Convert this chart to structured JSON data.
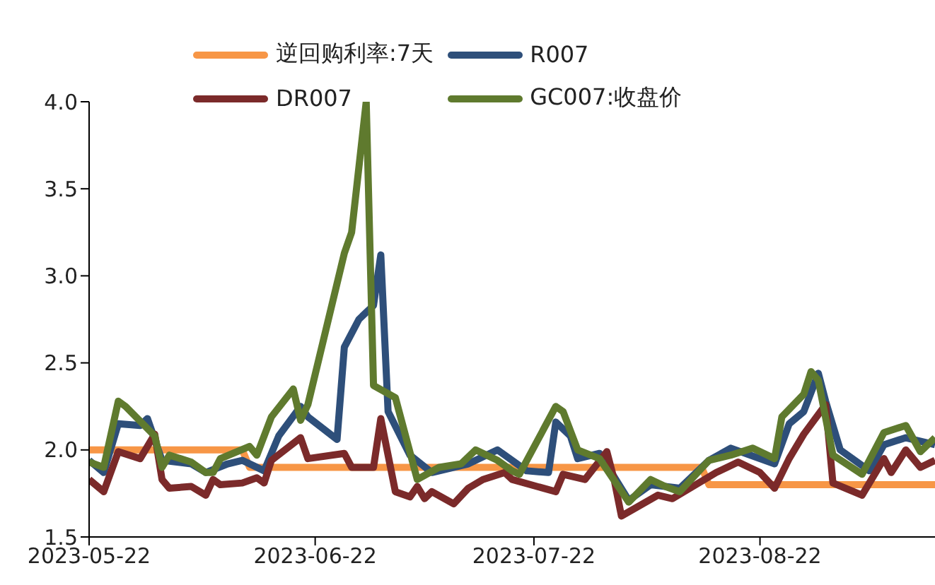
{
  "chart_data": {
    "type": "line",
    "xlim": [
      "2023-05-22",
      "2023-09-15"
    ],
    "xticks": [
      "2023-05-22",
      "2023-06-22",
      "2023-07-22",
      "2023-08-22"
    ],
    "ylim": [
      1.5,
      4.0
    ],
    "yticks": [
      1.5,
      {
        "value": 2,
        "label": "2.0"
      },
      2.5,
      {
        "value": 3,
        "label": "3.0"
      },
      3.5,
      {
        "value": 4,
        "label": "4.0"
      }
    ],
    "grid": false,
    "legend": "top",
    "marker": "none",
    "line_style": "solid",
    "series": [
      {
        "name": "逆回购利率:7天",
        "color": "#f79646",
        "x": [
          "2023-05-22",
          "2023-06-12",
          "2023-06-13",
          "2023-08-14",
          "2023-08-15",
          "2023-09-15"
        ],
        "values": [
          2.0,
          2.0,
          1.9,
          1.9,
          1.8,
          1.8
        ]
      },
      {
        "name": "R007",
        "color": "#2e4f7a",
        "x": [
          "2023-05-22",
          "2023-05-24",
          "2023-05-26",
          "2023-05-29",
          "2023-05-30",
          "2023-06-01",
          "2023-06-05",
          "2023-06-07",
          "2023-06-10",
          "2023-06-12",
          "2023-06-15",
          "2023-06-17",
          "2023-06-20",
          "2023-06-21",
          "2023-06-25",
          "2023-06-26",
          "2023-06-28",
          "2023-06-30",
          "2023-07-01",
          "2023-07-02",
          "2023-07-05",
          "2023-07-08",
          "2023-07-13",
          "2023-07-17",
          "2023-07-21",
          "2023-07-24",
          "2023-07-25",
          "2023-07-27",
          "2023-07-28",
          "2023-07-31",
          "2023-08-04",
          "2023-08-07",
          "2023-08-11",
          "2023-08-15",
          "2023-08-18",
          "2023-08-24",
          "2023-08-26",
          "2023-08-28",
          "2023-08-30",
          "2023-08-31",
          "2023-09-02",
          "2023-09-06",
          "2023-09-08",
          "2023-09-11",
          "2023-09-15"
        ],
        "values": [
          1.94,
          1.87,
          2.15,
          2.14,
          2.18,
          1.94,
          1.92,
          1.87,
          1.92,
          1.94,
          1.88,
          2.08,
          2.25,
          2.19,
          2.06,
          2.59,
          2.75,
          2.83,
          3.12,
          2.22,
          1.97,
          1.87,
          1.92,
          2.0,
          1.88,
          1.87,
          2.16,
          2.08,
          1.95,
          1.98,
          1.71,
          1.8,
          1.78,
          1.94,
          2.01,
          1.92,
          2.15,
          2.22,
          2.44,
          2.28,
          2.0,
          1.88,
          2.03,
          2.07,
          2.03
        ]
      },
      {
        "name": "DR007",
        "color": "#7b2a2a",
        "x": [
          "2023-05-22",
          "2023-05-24",
          "2023-05-26",
          "2023-05-29",
          "2023-05-31",
          "2023-06-01",
          "2023-06-02",
          "2023-06-05",
          "2023-06-07",
          "2023-06-08",
          "2023-06-09",
          "2023-06-12",
          "2023-06-14",
          "2023-06-15",
          "2023-06-16",
          "2023-06-20",
          "2023-06-21",
          "2023-06-26",
          "2023-06-27",
          "2023-06-30",
          "2023-07-01",
          "2023-07-03",
          "2023-07-05",
          "2023-07-06",
          "2023-07-07",
          "2023-07-08",
          "2023-07-11",
          "2023-07-13",
          "2023-07-15",
          "2023-07-18",
          "2023-07-19",
          "2023-07-25",
          "2023-07-26",
          "2023-07-29",
          "2023-08-01",
          "2023-08-02",
          "2023-08-03",
          "2023-08-08",
          "2023-08-10",
          "2023-08-16",
          "2023-08-19",
          "2023-08-22",
          "2023-08-24",
          "2023-08-26",
          "2023-08-28",
          "2023-08-31",
          "2023-09-01",
          "2023-09-05",
          "2023-09-08",
          "2023-09-09",
          "2023-09-11",
          "2023-09-13",
          "2023-09-15"
        ],
        "values": [
          1.83,
          1.76,
          1.99,
          1.95,
          2.09,
          1.83,
          1.78,
          1.79,
          1.74,
          1.83,
          1.8,
          1.81,
          1.84,
          1.81,
          1.94,
          2.07,
          1.95,
          1.98,
          1.9,
          1.9,
          2.18,
          1.76,
          1.73,
          1.79,
          1.72,
          1.76,
          1.69,
          1.78,
          1.83,
          1.87,
          1.83,
          1.76,
          1.86,
          1.83,
          1.99,
          1.83,
          1.62,
          1.74,
          1.72,
          1.87,
          1.93,
          1.87,
          1.78,
          1.95,
          2.09,
          2.26,
          1.81,
          1.74,
          1.95,
          1.87,
          2.0,
          1.9,
          1.94
        ]
      },
      {
        "name": "GC007:收盘价",
        "color": "#5f7a2e",
        "x": [
          "2023-05-22",
          "2023-05-24",
          "2023-05-26",
          "2023-05-27",
          "2023-05-31",
          "2023-06-01",
          "2023-06-02",
          "2023-06-05",
          "2023-06-07",
          "2023-06-08",
          "2023-06-09",
          "2023-06-13",
          "2023-06-14",
          "2023-06-16",
          "2023-06-19",
          "2023-06-20",
          "2023-06-21",
          "2023-06-26",
          "2023-06-27",
          "2023-06-29",
          "2023-06-30",
          "2023-07-03",
          "2023-07-06",
          "2023-07-09",
          "2023-07-12",
          "2023-07-14",
          "2023-07-17",
          "2023-07-19",
          "2023-07-20",
          "2023-07-25",
          "2023-07-26",
          "2023-07-28",
          "2023-07-31",
          "2023-08-04",
          "2023-08-07",
          "2023-08-09",
          "2023-08-11",
          "2023-08-15",
          "2023-08-18",
          "2023-08-21",
          "2023-08-24",
          "2023-08-25",
          "2023-08-28",
          "2023-08-29",
          "2023-08-30",
          "2023-09-01",
          "2023-09-05",
          "2023-09-08",
          "2023-09-11",
          "2023-09-13",
          "2023-09-15"
        ],
        "values": [
          1.93,
          1.9,
          2.28,
          2.25,
          2.08,
          1.9,
          1.97,
          1.93,
          1.87,
          1.87,
          1.95,
          2.02,
          1.97,
          2.19,
          2.35,
          2.17,
          2.26,
          3.13,
          3.25,
          4.0,
          2.37,
          2.3,
          1.83,
          1.9,
          1.92,
          2.0,
          1.94,
          1.88,
          1.86,
          2.25,
          2.22,
          2.0,
          1.95,
          1.7,
          1.83,
          1.79,
          1.76,
          1.94,
          1.97,
          2.01,
          1.95,
          2.19,
          2.32,
          2.45,
          2.4,
          1.97,
          1.86,
          2.1,
          2.14,
          1.99,
          2.07
        ]
      }
    ]
  }
}
